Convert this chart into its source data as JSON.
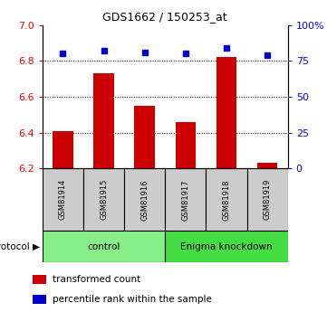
{
  "title": "GDS1662 / 150253_at",
  "samples": [
    "GSM81914",
    "GSM81915",
    "GSM81916",
    "GSM81917",
    "GSM81918",
    "GSM81919"
  ],
  "bar_values": [
    6.41,
    6.73,
    6.55,
    6.46,
    6.82,
    6.23
  ],
  "percentile_values": [
    80,
    82,
    81,
    80,
    84,
    79
  ],
  "bar_color": "#cc0000",
  "percentile_color": "#0000cc",
  "ylim_left": [
    6.2,
    7.0
  ],
  "ylim_right": [
    0,
    100
  ],
  "yticks_left": [
    6.2,
    6.4,
    6.6,
    6.8,
    7.0
  ],
  "yticks_right": [
    0,
    25,
    50,
    75,
    100
  ],
  "ytick_labels_right": [
    "0",
    "25",
    "50",
    "75",
    "100%"
  ],
  "groups": [
    {
      "label": "control",
      "start": 0,
      "end": 3,
      "color": "#88ee88"
    },
    {
      "label": "Enigma knockdown",
      "start": 3,
      "end": 6,
      "color": "#44dd44"
    }
  ],
  "protocol_label": "protocol",
  "legend_entries": [
    {
      "color": "#cc0000",
      "label": "transformed count"
    },
    {
      "color": "#0000cc",
      "label": "percentile rank within the sample"
    }
  ],
  "sample_box_color": "#cccccc",
  "bar_width": 0.5
}
